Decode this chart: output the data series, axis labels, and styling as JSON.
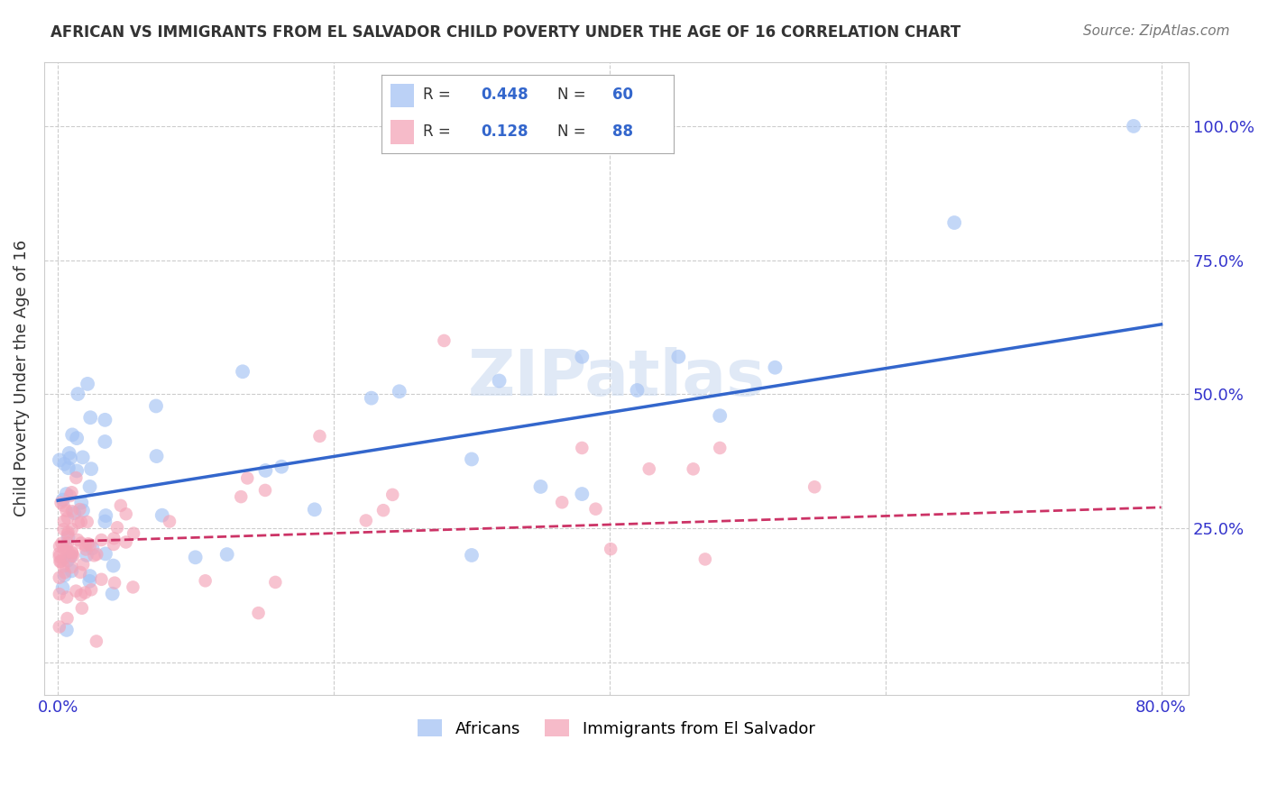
{
  "title": "AFRICAN VS IMMIGRANTS FROM EL SALVADOR CHILD POVERTY UNDER THE AGE OF 16 CORRELATION CHART",
  "source": "Source: ZipAtlas.com",
  "ylabel": "Child Poverty Under the Age of 16",
  "blue_color": "#a4c2f4",
  "pink_color": "#f4a4b8",
  "blue_line_color": "#3366cc",
  "pink_line_color": "#cc3366",
  "watermark": "ZIPatlas",
  "R_african": 0.448,
  "N_african": 60,
  "R_salvador": 0.128,
  "N_salvador": 88,
  "ytick_color": "#3333cc",
  "xtick_color": "#3333cc",
  "ylabel_color": "#333333",
  "title_color": "#333333",
  "source_color": "#777777",
  "grid_color": "#cccccc",
  "legend_border_color": "#aaaaaa"
}
